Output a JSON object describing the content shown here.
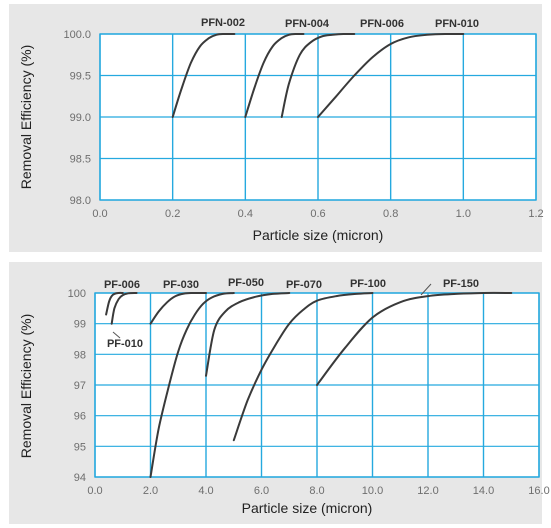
{
  "chart_data": [
    {
      "type": "line",
      "xlabel": "Particle size (micron)",
      "ylabel": "Removal Efficiency (%)",
      "xlim": [
        0.0,
        1.2
      ],
      "ylim": [
        98.0,
        100.0
      ],
      "x_ticks": [
        "0.0",
        "0.2",
        "0.4",
        "0.6",
        "0.8",
        "1.0",
        "1.2"
      ],
      "y_ticks": [
        "98.0",
        "98.5",
        "99.0",
        "99.5",
        "100.0"
      ],
      "grid": true,
      "series": [
        {
          "name": "PFN-002",
          "x": [
            0.2,
            0.225,
            0.25,
            0.275,
            0.3,
            0.32,
            0.34,
            0.37
          ],
          "y": [
            99.0,
            99.35,
            99.65,
            99.85,
            99.95,
            99.99,
            100.0,
            100.0
          ]
        },
        {
          "name": "PFN-004",
          "x": [
            0.4,
            0.425,
            0.45,
            0.475,
            0.5,
            0.52,
            0.54,
            0.56
          ],
          "y": [
            99.0,
            99.35,
            99.65,
            99.85,
            99.95,
            99.99,
            100.0,
            100.0
          ]
        },
        {
          "name": "PFN-006",
          "x": [
            0.5,
            0.52,
            0.55,
            0.58,
            0.61,
            0.64,
            0.67,
            0.7
          ],
          "y": [
            99.0,
            99.4,
            99.75,
            99.9,
            99.97,
            99.99,
            100.0,
            100.0
          ]
        },
        {
          "name": "PFN-010",
          "x": [
            0.6,
            0.65,
            0.7,
            0.75,
            0.8,
            0.85,
            0.9,
            0.95,
            1.0
          ],
          "y": [
            99.0,
            99.25,
            99.5,
            99.72,
            99.88,
            99.96,
            99.99,
            100.0,
            100.0
          ]
        }
      ]
    },
    {
      "type": "line",
      "xlabel": "Particle size (micron)",
      "ylabel": "Removal Efficiency (%)",
      "xlim": [
        0.0,
        16.0
      ],
      "ylim": [
        94,
        100
      ],
      "x_ticks": [
        "0.0",
        "2.0",
        "4.0",
        "6.0",
        "8.0",
        "10.0",
        "12.0",
        "14.0",
        "16.0"
      ],
      "y_ticks": [
        "94",
        "95",
        "96",
        "97",
        "98",
        "99",
        "100"
      ],
      "grid": true,
      "series": [
        {
          "name": "PF-006",
          "x": [
            0.4,
            0.5,
            0.6,
            0.7,
            0.85,
            1.0
          ],
          "y": [
            99.3,
            99.7,
            99.9,
            99.97,
            100.0,
            100.0
          ]
        },
        {
          "name": "PF-010",
          "x": [
            0.6,
            0.7,
            0.85,
            1.0,
            1.2,
            1.5
          ],
          "y": [
            99.0,
            99.5,
            99.8,
            99.93,
            99.99,
            100.0
          ]
        },
        {
          "name": "PF-030",
          "x": [
            2.0,
            2.3,
            2.6,
            2.9,
            3.2,
            3.5,
            4.0
          ],
          "y": [
            99.0,
            99.4,
            99.7,
            99.9,
            99.98,
            100.0,
            100.0
          ]
        },
        {
          "name": "PF-050",
          "x": [
            2.0,
            2.3,
            2.7,
            3.0,
            3.3,
            3.6,
            3.9,
            4.2,
            4.6,
            5.0
          ],
          "y": [
            94.0,
            95.6,
            97.1,
            98.1,
            98.8,
            99.3,
            99.65,
            99.85,
            99.97,
            100.0
          ]
        },
        {
          "name": "PF-070",
          "x": [
            4.0,
            4.3,
            4.7,
            5.2,
            5.8,
            6.4,
            7.0
          ],
          "y": [
            97.3,
            98.8,
            99.4,
            99.7,
            99.88,
            99.97,
            100.0
          ]
        },
        {
          "name": "PF-100",
          "x": [
            5.0,
            5.5,
            6.0,
            6.5,
            7.0,
            7.5,
            8.0,
            8.7,
            9.4,
            10.0
          ],
          "y": [
            95.2,
            96.5,
            97.5,
            98.3,
            99.0,
            99.45,
            99.75,
            99.9,
            99.97,
            100.0
          ]
        },
        {
          "name": "PF-150",
          "x": [
            8.0,
            9.0,
            10.0,
            11.0,
            12.0,
            13.0,
            14.0,
            15.0
          ],
          "y": [
            97.0,
            98.2,
            99.2,
            99.7,
            99.9,
            99.97,
            100.0,
            100.0
          ]
        }
      ]
    }
  ]
}
